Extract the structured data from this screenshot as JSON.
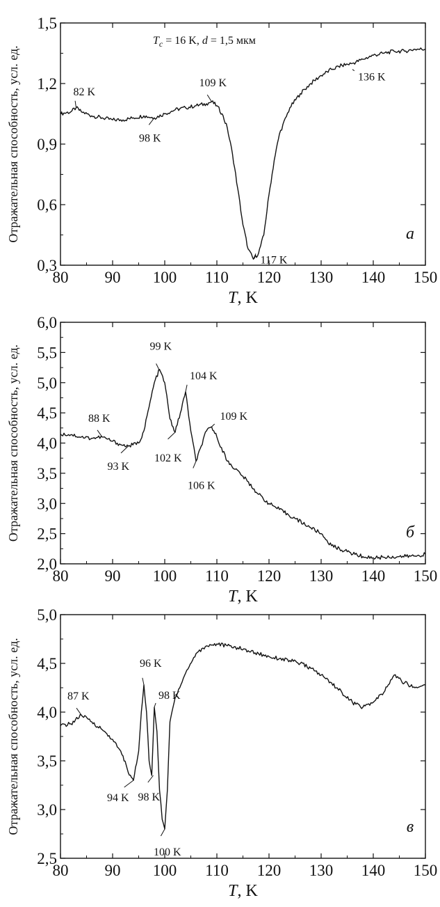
{
  "chart_data": [
    {
      "type": "line",
      "panel": "a",
      "panel_letter": "а",
      "ylabel": "Отражательная способность, усл. ед.",
      "xlabel": {
        "symbol": "T",
        "unit": ", K"
      },
      "xlim": [
        80,
        150
      ],
      "ylim": [
        0.3,
        1.5
      ],
      "xticks": [
        80,
        90,
        100,
        110,
        120,
        130,
        140,
        150
      ],
      "xtick_labels": [
        "80",
        "90",
        "100",
        "110",
        "120",
        "130",
        "140",
        "150"
      ],
      "yticks": [
        0.3,
        0.6,
        0.9,
        1.2,
        1.5
      ],
      "ytick_labels": [
        "0,3",
        "0,6",
        "0,9",
        "1,2",
        "1,5"
      ],
      "note": {
        "tc_symbol": "T",
        "tc_sub": "c",
        "tc_value": " = 16 K, ",
        "d_symbol": "d",
        "d_value": " = 1,5 мкм"
      },
      "annotations": [
        {
          "text": "82 K",
          "x": 83,
          "y": 1.08
        },
        {
          "text": "98 K",
          "x": 98,
          "y": 1.03
        },
        {
          "text": "109 K",
          "x": 109,
          "y": 1.11
        },
        {
          "text": "117 K",
          "x": 117,
          "y": 0.33
        },
        {
          "text": "136 K",
          "x": 136,
          "y": 1.27
        }
      ],
      "series": [
        {
          "x": [
            80,
            82,
            83,
            84,
            86,
            88,
            90,
            92,
            94,
            96,
            98,
            100,
            102,
            104,
            106,
            108,
            109,
            110,
            111,
            112,
            113,
            114,
            115,
            116,
            117,
            118,
            119,
            120,
            121,
            122,
            124,
            126,
            128,
            130,
            132,
            134,
            136,
            138,
            140,
            142,
            144,
            146,
            148,
            150
          ],
          "y": [
            1.05,
            1.06,
            1.08,
            1.06,
            1.04,
            1.03,
            1.02,
            1.02,
            1.03,
            1.04,
            1.03,
            1.05,
            1.07,
            1.08,
            1.09,
            1.1,
            1.11,
            1.09,
            1.05,
            0.98,
            0.85,
            0.68,
            0.5,
            0.38,
            0.33,
            0.36,
            0.45,
            0.65,
            0.82,
            0.95,
            1.08,
            1.15,
            1.2,
            1.24,
            1.27,
            1.29,
            1.3,
            1.32,
            1.34,
            1.35,
            1.36,
            1.36,
            1.37,
            1.37
          ]
        }
      ]
    },
    {
      "type": "line",
      "panel": "b",
      "panel_letter": "б",
      "ylabel": "Отражательная способность, усл. ед.",
      "xlabel": {
        "symbol": "T",
        "unit": ", K"
      },
      "xlim": [
        80,
        150
      ],
      "ylim": [
        2.0,
        6.0
      ],
      "xticks": [
        80,
        90,
        100,
        110,
        120,
        130,
        140,
        150
      ],
      "xtick_labels": [
        "80",
        "90",
        "100",
        "110",
        "120",
        "130",
        "140",
        "150"
      ],
      "yticks": [
        2.0,
        2.5,
        3.0,
        3.5,
        4.0,
        4.5,
        5.0,
        5.5,
        6.0
      ],
      "ytick_labels": [
        "2,0",
        "2,5",
        "3,0",
        "3,5",
        "4,0",
        "4,5",
        "5,0",
        "5,5",
        "6,0"
      ],
      "annotations": [
        {
          "text": "88 K",
          "x": 88,
          "y": 4.1
        },
        {
          "text": "93 K",
          "x": 93,
          "y": 3.95
        },
        {
          "text": "99 K",
          "x": 99,
          "y": 5.2
        },
        {
          "text": "102 K",
          "x": 102,
          "y": 4.18
        },
        {
          "text": "104 K",
          "x": 104,
          "y": 4.85
        },
        {
          "text": "106 K",
          "x": 106,
          "y": 3.7
        },
        {
          "text": "109 K",
          "x": 109,
          "y": 4.27
        }
      ],
      "series": [
        {
          "x": [
            80,
            82,
            84,
            86,
            88,
            90,
            92,
            93,
            95,
            96,
            97,
            98,
            99,
            100,
            101,
            102,
            103,
            104,
            105,
            106,
            107,
            108,
            109,
            110,
            112,
            115,
            118,
            120,
            122,
            125,
            128,
            130,
            132,
            135,
            138,
            140,
            142,
            145,
            148,
            150
          ],
          "y": [
            4.15,
            4.14,
            4.1,
            4.08,
            4.1,
            4.03,
            3.96,
            3.95,
            4.0,
            4.2,
            4.6,
            5.0,
            5.22,
            5.0,
            4.4,
            4.18,
            4.5,
            4.85,
            4.2,
            3.7,
            3.95,
            4.2,
            4.27,
            4.1,
            3.7,
            3.45,
            3.15,
            3.0,
            2.9,
            2.75,
            2.6,
            2.5,
            2.3,
            2.2,
            2.12,
            2.1,
            2.11,
            2.12,
            2.13,
            2.16
          ]
        }
      ]
    },
    {
      "type": "line",
      "panel": "c",
      "panel_letter": "в",
      "ylabel": "Отражательная способность, усл. ед.",
      "xlabel": {
        "symbol": "T",
        "unit": ", K"
      },
      "xlim": [
        80,
        150
      ],
      "ylim": [
        2.5,
        5.0
      ],
      "xticks": [
        80,
        90,
        100,
        110,
        120,
        130,
        140,
        150
      ],
      "xtick_labels": [
        "80",
        "90",
        "100",
        "110",
        "120",
        "130",
        "140",
        "150"
      ],
      "yticks": [
        2.5,
        3.0,
        3.5,
        4.0,
        4.5,
        5.0
      ],
      "ytick_labels": [
        "2,5",
        "3,0",
        "3,5",
        "4,0",
        "4,5",
        "5,0"
      ],
      "annotations": [
        {
          "text": "87 K",
          "x": 84,
          "y": 3.97
        },
        {
          "text": "94 K",
          "x": 94,
          "y": 3.3
        },
        {
          "text": "96 K",
          "x": 96,
          "y": 4.28
        },
        {
          "text": "98 K",
          "x": 98,
          "y": 4.05,
          "label_position": "above"
        },
        {
          "text": "98 K",
          "x": 97.8,
          "y": 3.35,
          "label_position": "below"
        },
        {
          "text": "100 K",
          "x": 100,
          "y": 2.8
        }
      ],
      "series": [
        {
          "x": [
            80,
            82,
            84,
            86,
            88,
            90,
            92,
            93,
            94,
            95,
            95.5,
            96,
            96.5,
            97,
            97.5,
            98,
            98.5,
            99,
            99.5,
            100,
            100.5,
            101,
            102,
            104,
            106,
            108,
            110,
            112,
            114,
            116,
            118,
            120,
            122,
            124,
            126,
            128,
            130,
            132,
            134,
            136,
            138,
            140,
            142,
            144,
            146,
            148,
            150
          ],
          "y": [
            3.86,
            3.88,
            3.97,
            3.9,
            3.82,
            3.72,
            3.55,
            3.38,
            3.3,
            3.6,
            4.0,
            4.28,
            4.0,
            3.5,
            3.35,
            4.05,
            3.8,
            3.2,
            2.9,
            2.8,
            3.2,
            3.9,
            4.15,
            4.4,
            4.6,
            4.68,
            4.7,
            4.68,
            4.66,
            4.63,
            4.6,
            4.57,
            4.55,
            4.53,
            4.5,
            4.45,
            4.38,
            4.3,
            4.2,
            4.1,
            4.05,
            4.1,
            4.2,
            4.38,
            4.3,
            4.25,
            4.28
          ]
        }
      ]
    }
  ]
}
